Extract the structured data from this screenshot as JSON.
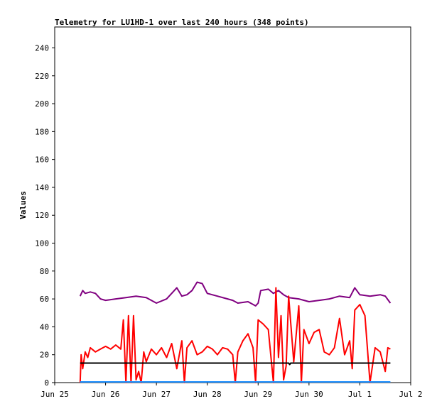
{
  "chart_data": {
    "type": "line",
    "title": "Telemetry for LU1HD-1 over last 240 hours (348 points)",
    "xlabel": "",
    "ylabel": "Values",
    "ylim": [
      0,
      255
    ],
    "yticks": [
      0,
      20,
      40,
      60,
      80,
      100,
      120,
      140,
      160,
      180,
      200,
      220,
      240
    ],
    "xticks": [
      "Jun 25",
      "Jun 26",
      "Jun 27",
      "Jun 28",
      "Jun 29",
      "Jun 30",
      "Jul 1",
      "Jul 2"
    ],
    "xlim": [
      0,
      7.0
    ],
    "grid": false,
    "legend": "none",
    "series": [
      {
        "color": "#800080",
        "x": [
          0.5,
          0.55,
          0.6,
          0.7,
          0.8,
          0.9,
          1.0,
          1.2,
          1.4,
          1.6,
          1.8,
          2.0,
          2.2,
          2.4,
          2.5,
          2.6,
          2.7,
          2.8,
          2.9,
          3.0,
          3.2,
          3.4,
          3.5,
          3.6,
          3.8,
          3.95,
          4.0,
          4.05,
          4.2,
          4.3,
          4.4,
          4.5,
          4.6,
          4.8,
          5.0,
          5.2,
          5.4,
          5.6,
          5.8,
          5.9,
          6.0,
          6.2,
          6.4,
          6.5,
          6.6
        ],
        "values": [
          62,
          66,
          64,
          65,
          64,
          60,
          59,
          60,
          61,
          62,
          61,
          57,
          60,
          68,
          62,
          63,
          66,
          72,
          71,
          64,
          62,
          60,
          59,
          57,
          58,
          55,
          57,
          66,
          67,
          64,
          66,
          63,
          61,
          60,
          58,
          59,
          60,
          62,
          61,
          68,
          63,
          62,
          63,
          62,
          57
        ]
      },
      {
        "color": "#ff0000",
        "x": [
          0.5,
          0.52,
          0.55,
          0.6,
          0.65,
          0.7,
          0.8,
          0.9,
          1.0,
          1.1,
          1.2,
          1.3,
          1.35,
          1.4,
          1.45,
          1.5,
          1.55,
          1.6,
          1.65,
          1.7,
          1.75,
          1.8,
          1.9,
          2.0,
          2.1,
          2.2,
          2.3,
          2.4,
          2.5,
          2.55,
          2.6,
          2.7,
          2.8,
          2.9,
          3.0,
          3.1,
          3.2,
          3.3,
          3.4,
          3.5,
          3.55,
          3.6,
          3.7,
          3.8,
          3.9,
          3.95,
          4.0,
          4.1,
          4.2,
          4.3,
          4.35,
          4.4,
          4.45,
          4.5,
          4.55,
          4.6,
          4.7,
          4.8,
          4.85,
          4.9,
          5.0,
          5.1,
          5.2,
          5.3,
          5.4,
          5.5,
          5.6,
          5.7,
          5.8,
          5.85,
          5.9,
          6.0,
          6.1,
          6.2,
          6.3,
          6.4,
          6.5,
          6.55,
          6.6
        ],
        "values": [
          0,
          20,
          10,
          22,
          18,
          25,
          22,
          24,
          26,
          24,
          27,
          24,
          45,
          0,
          48,
          0,
          48,
          2,
          8,
          0,
          22,
          15,
          24,
          20,
          25,
          18,
          28,
          10,
          30,
          0,
          25,
          30,
          20,
          22,
          26,
          24,
          20,
          25,
          24,
          20,
          0,
          22,
          30,
          35,
          25,
          0,
          45,
          42,
          38,
          0,
          68,
          18,
          48,
          2,
          12,
          62,
          15,
          55,
          0,
          38,
          28,
          36,
          38,
          22,
          20,
          25,
          46,
          20,
          30,
          10,
          52,
          56,
          48,
          0,
          25,
          22,
          8,
          25,
          24
        ]
      },
      {
        "color": "#000000",
        "x": [
          0.5,
          4.6,
          4.62,
          4.64,
          6.6
        ],
        "values": [
          14,
          14,
          13,
          14,
          14
        ]
      },
      {
        "color": "#1e90ff",
        "x": [
          0.5,
          6.6
        ],
        "values": [
          0.5,
          0.5
        ]
      }
    ]
  }
}
